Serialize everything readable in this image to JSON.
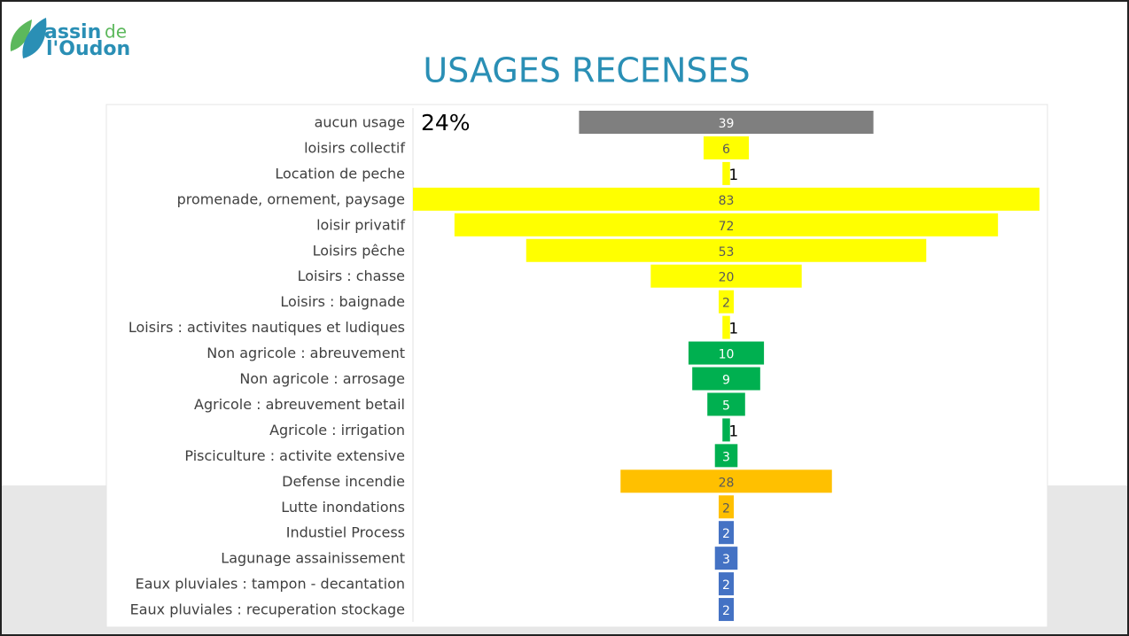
{
  "logo": {
    "line1": "assin",
    "line1b": "de",
    "line2": "l'Oudon"
  },
  "chart_data": {
    "type": "funnel",
    "title": "USAGES RECENSES",
    "annotation": "24%",
    "categories": [
      "aucun usage",
      "loisirs collectif",
      "Location de peche",
      "promenade, ornement, paysage",
      "loisir privatif",
      "Loisirs pêche",
      "Loisirs : chasse",
      "Loisirs : baignade",
      "Loisirs : activites nautiques et ludiques",
      "Non agricole : abreuvement",
      "Non agricole : arrosage",
      "Agricole : abreuvement betail",
      "Agricole : irrigation",
      "Pisciculture : activite extensive",
      "Defense incendie",
      "Lutte inondations",
      "Industiel Process",
      "Lagunage assainissement",
      "Eaux pluviales : tampon - decantation",
      "Eaux pluviales : recuperation stockage"
    ],
    "values": [
      39,
      6,
      1,
      83,
      72,
      53,
      20,
      2,
      1,
      10,
      9,
      5,
      1,
      3,
      28,
      2,
      2,
      3,
      2,
      2
    ],
    "colors": [
      "#7f7f7f",
      "#ffff00",
      "#ffff00",
      "#ffff00",
      "#ffff00",
      "#ffff00",
      "#ffff00",
      "#ffff00",
      "#ffff00",
      "#00b050",
      "#00b050",
      "#00b050",
      "#00b050",
      "#00b050",
      "#ffc000",
      "#ffc000",
      "#4472c4",
      "#4472c4",
      "#4472c4",
      "#4472c4"
    ]
  }
}
